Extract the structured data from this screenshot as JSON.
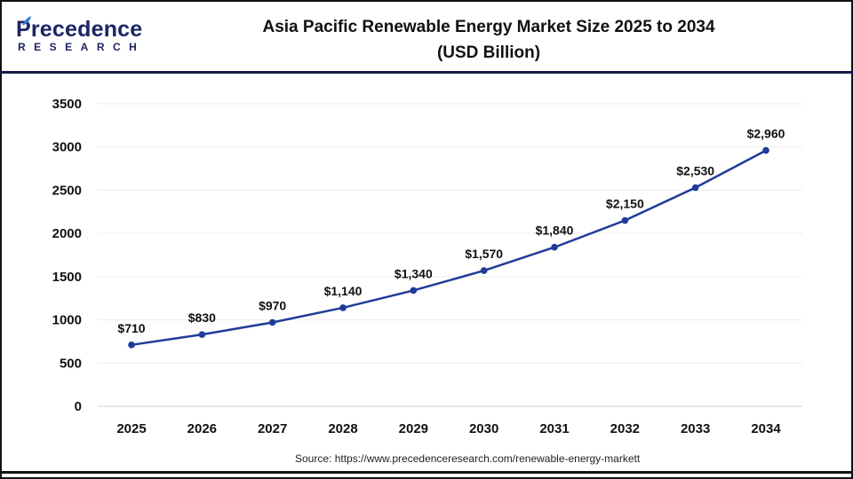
{
  "header": {
    "title_line1": "Asia Pacific Renewable Energy Market Size 2025 to 2034",
    "title_line2": "(USD Billion)",
    "logo_text": "Precedence",
    "logo_subtext": "RESEARCH"
  },
  "source": "Source: https://www.precedenceresearch.com/renewable-energy-markett",
  "colors": {
    "line": "#1f3c98",
    "header_rule": "#141a4a",
    "logo_dark": "#1c2566",
    "logo_accent": "#2d7bd6"
  },
  "chart_data": {
    "type": "line",
    "title": "Asia Pacific Renewable Energy Market Size 2025 to 2034 (USD Billion)",
    "categories": [
      "2025",
      "2026",
      "2027",
      "2028",
      "2029",
      "2030",
      "2031",
      "2032",
      "2033",
      "2034"
    ],
    "values": [
      710,
      830,
      970,
      1140,
      1340,
      1570,
      1840,
      2150,
      2530,
      2960
    ],
    "data_labels": [
      "$710",
      "$830",
      "$970",
      "$1,140",
      "$1,340",
      "$1,570",
      "$1,840",
      "$2,150",
      "$2,530",
      "$2,960"
    ],
    "ylim": [
      0,
      3500
    ],
    "yticks": [
      0,
      500,
      1000,
      1500,
      2000,
      2500,
      3000,
      3500
    ],
    "grid": true,
    "legend": "none",
    "xlabel": "",
    "ylabel": ""
  }
}
